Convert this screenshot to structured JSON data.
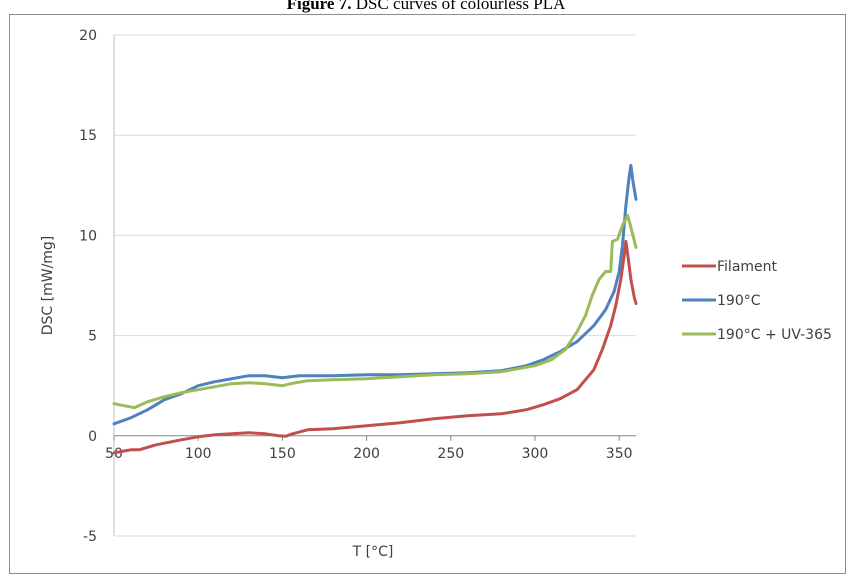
{
  "figure": {
    "title_bold": "Figure 7.",
    "title_rest": "DSC curves of colourless PLA"
  },
  "chart_data": {
    "type": "line",
    "xlabel": "T [°C]",
    "ylabel": "DSC [mW/mg]",
    "xlim": [
      50,
      360
    ],
    "ylim": [
      -5,
      20
    ],
    "xticks": [
      50,
      100,
      150,
      200,
      250,
      300,
      350
    ],
    "yticks": [
      -5,
      0,
      5,
      10,
      15,
      20
    ],
    "grid": "horizontal",
    "legend_position": "right",
    "series": [
      {
        "name": "Filament",
        "color": "#c0504d",
        "points": [
          [
            50,
            -0.85
          ],
          [
            60,
            -0.7
          ],
          [
            65,
            -0.7
          ],
          [
            75,
            -0.45
          ],
          [
            90,
            -0.2
          ],
          [
            100,
            -0.05
          ],
          [
            110,
            0.05
          ],
          [
            120,
            0.1
          ],
          [
            130,
            0.15
          ],
          [
            140,
            0.1
          ],
          [
            148,
            0.0
          ],
          [
            152,
            -0.02
          ],
          [
            156,
            0.1
          ],
          [
            165,
            0.3
          ],
          [
            180,
            0.35
          ],
          [
            200,
            0.5
          ],
          [
            220,
            0.65
          ],
          [
            240,
            0.85
          ],
          [
            260,
            1.0
          ],
          [
            280,
            1.1
          ],
          [
            295,
            1.3
          ],
          [
            305,
            1.55
          ],
          [
            315,
            1.85
          ],
          [
            325,
            2.3
          ],
          [
            335,
            3.3
          ],
          [
            340,
            4.3
          ],
          [
            345,
            5.5
          ],
          [
            348,
            6.5
          ],
          [
            351,
            7.8
          ],
          [
            353,
            9.0
          ],
          [
            354,
            9.7
          ],
          [
            355,
            9.1
          ],
          [
            357,
            7.8
          ],
          [
            359,
            6.9
          ],
          [
            360,
            6.6
          ]
        ]
      },
      {
        "name": "190°C",
        "color": "#4f81bd",
        "points": [
          [
            50,
            0.6
          ],
          [
            60,
            0.9
          ],
          [
            70,
            1.3
          ],
          [
            80,
            1.8
          ],
          [
            90,
            2.1
          ],
          [
            100,
            2.5
          ],
          [
            110,
            2.7
          ],
          [
            120,
            2.85
          ],
          [
            130,
            3.0
          ],
          [
            140,
            3.0
          ],
          [
            150,
            2.9
          ],
          [
            155,
            2.95
          ],
          [
            160,
            3.0
          ],
          [
            180,
            3.0
          ],
          [
            200,
            3.05
          ],
          [
            220,
            3.05
          ],
          [
            240,
            3.1
          ],
          [
            260,
            3.15
          ],
          [
            280,
            3.25
          ],
          [
            295,
            3.5
          ],
          [
            305,
            3.8
          ],
          [
            315,
            4.2
          ],
          [
            325,
            4.7
          ],
          [
            335,
            5.5
          ],
          [
            342,
            6.3
          ],
          [
            347,
            7.2
          ],
          [
            350,
            8.2
          ],
          [
            352,
            9.5
          ],
          [
            354,
            11.5
          ],
          [
            356,
            13.0
          ],
          [
            357,
            13.5
          ],
          [
            358,
            12.8
          ],
          [
            360,
            11.8
          ]
        ]
      },
      {
        "name": "190°C + UV-365",
        "color": "#9bbb59",
        "points": [
          [
            50,
            1.6
          ],
          [
            56,
            1.5
          ],
          [
            62,
            1.4
          ],
          [
            70,
            1.7
          ],
          [
            80,
            1.95
          ],
          [
            90,
            2.15
          ],
          [
            100,
            2.3
          ],
          [
            110,
            2.45
          ],
          [
            120,
            2.6
          ],
          [
            130,
            2.65
          ],
          [
            140,
            2.6
          ],
          [
            150,
            2.5
          ],
          [
            155,
            2.6
          ],
          [
            165,
            2.75
          ],
          [
            180,
            2.8
          ],
          [
            200,
            2.85
          ],
          [
            220,
            2.95
          ],
          [
            240,
            3.05
          ],
          [
            260,
            3.1
          ],
          [
            280,
            3.2
          ],
          [
            300,
            3.5
          ],
          [
            310,
            3.8
          ],
          [
            318,
            4.3
          ],
          [
            325,
            5.2
          ],
          [
            330,
            6.0
          ],
          [
            334,
            7.0
          ],
          [
            338,
            7.8
          ],
          [
            342,
            8.2
          ],
          [
            345,
            8.2
          ],
          [
            346,
            9.7
          ],
          [
            349,
            9.8
          ],
          [
            352,
            10.5
          ],
          [
            355,
            11.0
          ],
          [
            357,
            10.4
          ],
          [
            360,
            9.4
          ]
        ]
      }
    ]
  }
}
